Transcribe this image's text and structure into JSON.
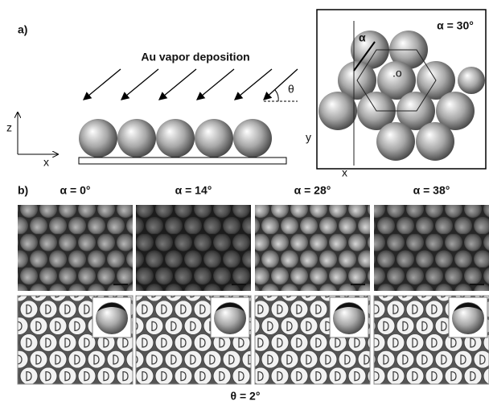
{
  "panel_a": {
    "label": "a)",
    "title": "Au vapor deposition",
    "theta": "θ",
    "side_axes": {
      "z": "z",
      "x": "x"
    },
    "top_view": {
      "angle": "α = 30°",
      "alpha": "α",
      "origin": ".o",
      "y": "y",
      "x": "x"
    }
  },
  "panel_b": {
    "label": "b)",
    "columns": [
      "α = 0°",
      "α = 14°",
      "α = 28°",
      "α = 38°"
    ],
    "caption": "θ = 2°"
  }
}
